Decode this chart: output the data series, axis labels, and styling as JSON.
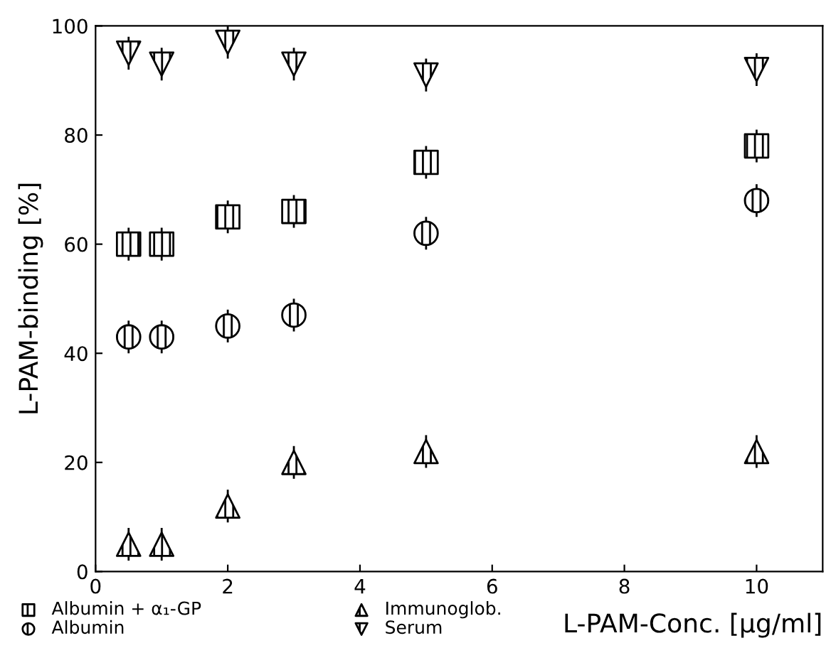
{
  "chart_data": {
    "type": "scatter",
    "xlabel": "L-PAM-Conc. [μg/ml]",
    "ylabel": "L-PAM-binding [%]",
    "x": [
      0.5,
      1,
      2,
      3,
      5,
      10
    ],
    "series": [
      {
        "name": "Albumin + α₁-GP",
        "color": "#000000",
        "marker": "square",
        "values": [
          60,
          60,
          65,
          66,
          75,
          78
        ],
        "errors": [
          3,
          3,
          3,
          3,
          3,
          3
        ]
      },
      {
        "name": "Albumin",
        "color": "#000000",
        "marker": "circle",
        "values": [
          43,
          43,
          45,
          47,
          62,
          68
        ],
        "errors": [
          3,
          3,
          3,
          3,
          3,
          3
        ]
      },
      {
        "name": "Immunoglob.",
        "color": "#000000",
        "marker": "triangle",
        "values": [
          5,
          5,
          12,
          20,
          22,
          22
        ],
        "errors": [
          3,
          3,
          3,
          3,
          3,
          3
        ]
      },
      {
        "name": "Serum",
        "color": "#000000",
        "marker": "triangle_down",
        "values": [
          95,
          93,
          97,
          93,
          91,
          92
        ],
        "errors": [
          3,
          3,
          3,
          3,
          3,
          3
        ]
      }
    ],
    "xlim": [
      0,
      11
    ],
    "ylim": [
      0,
      100
    ],
    "xticks": [
      0,
      2,
      4,
      6,
      8,
      10
    ],
    "yticks": [
      0,
      20,
      40,
      60,
      80,
      100
    ],
    "grid": false,
    "legend": "bottom left"
  }
}
